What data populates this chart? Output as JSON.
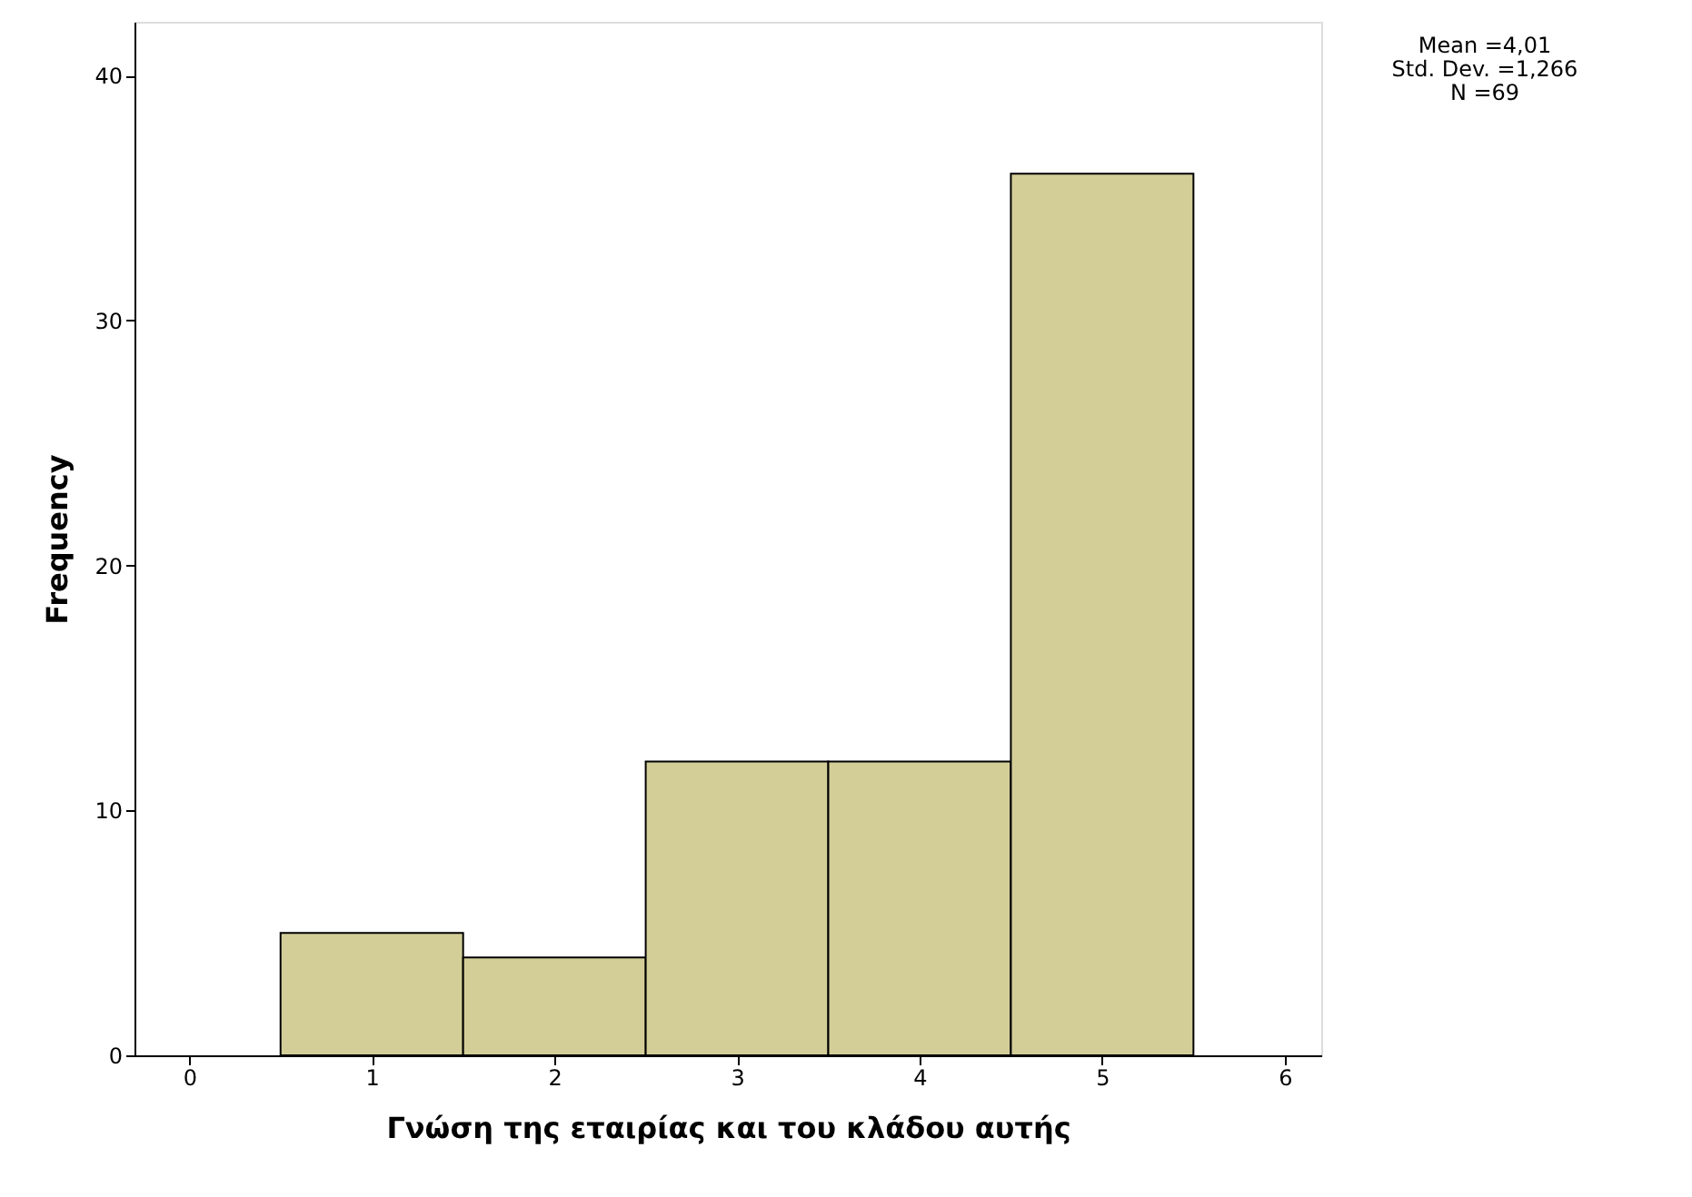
{
  "chart_data": {
    "type": "histogram",
    "xlabel": "Γνώση της εταιρίας και του κλάδου αυτής",
    "ylabel": "Frequency",
    "bins": [
      0.5,
      1.5,
      2.5,
      3.5,
      4.5,
      5.5
    ],
    "values": [
      5,
      4,
      12,
      12,
      36
    ],
    "color": "#d3ce98",
    "xlim": [
      -0.3,
      6.2
    ],
    "xticks": [
      0,
      1,
      2,
      3,
      4,
      5,
      6
    ],
    "ylim": [
      0,
      42.2
    ],
    "yticks": [
      0,
      10,
      20,
      30,
      40
    ],
    "grid": false,
    "annotations": [
      "Mean =4,01",
      "Std. Dev. =1,266",
      "N =69"
    ]
  }
}
